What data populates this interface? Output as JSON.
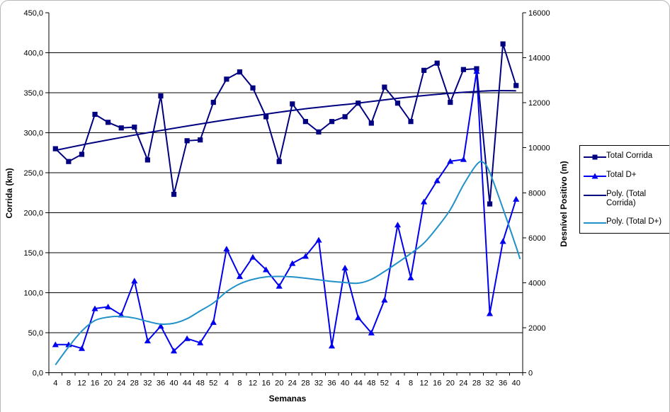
{
  "chart_data": {
    "type": "line",
    "title": "",
    "xlabel": "Semanas",
    "ylabel_left": "Corrida (km)",
    "ylabel_right": "Desnível Positivo (m)",
    "grid": "horizontal",
    "legend_position": "right",
    "x_labels": [
      "4",
      "8",
      "12",
      "16",
      "20",
      "24",
      "28",
      "32",
      "36",
      "40",
      "44",
      "48",
      "52",
      "4",
      "8",
      "12",
      "16",
      "20",
      "24",
      "28",
      "32",
      "36",
      "40",
      "44",
      "48",
      "52",
      "4",
      "8",
      "12",
      "16",
      "20",
      "24",
      "28",
      "32",
      "36",
      "40"
    ],
    "left_axis": {
      "min": 0,
      "max": 450,
      "step": 50,
      "tick_labels": [
        "450,0",
        "400,0",
        "350,0",
        "300,0",
        "250,0",
        "200,0",
        "150,0",
        "100,0",
        "50,0",
        "0,0"
      ]
    },
    "right_axis": {
      "min": 0,
      "max": 16000,
      "step": 2000,
      "tick_labels": [
        "16000",
        "14000",
        "12000",
        "10000",
        "8000",
        "6000",
        "4000",
        "2000",
        "0"
      ]
    },
    "series": [
      {
        "name": "Total Corrida",
        "axis": "left",
        "color": "#000080",
        "marker": "square",
        "values": [
          280,
          264,
          273,
          323,
          313,
          306,
          307,
          266,
          346,
          223,
          290,
          291,
          338,
          367,
          376,
          356,
          320,
          264,
          336,
          314,
          301,
          314,
          320,
          337,
          312,
          357,
          337,
          314,
          378,
          387,
          338,
          379,
          380,
          211,
          411,
          359
        ]
      },
      {
        "name": "Total D+",
        "axis": "right",
        "color": "#0000ee",
        "marker": "triangle",
        "values": [
          1250,
          1250,
          1080,
          2850,
          2930,
          2570,
          4080,
          1420,
          2070,
          970,
          1520,
          1330,
          2240,
          5500,
          4280,
          5140,
          4580,
          3850,
          4860,
          5180,
          5900,
          1190,
          4660,
          2450,
          1770,
          3230,
          6570,
          4220,
          7600,
          8540,
          9400,
          9480,
          13400,
          2630,
          5840,
          7715
        ]
      },
      {
        "name": "Poly. (Total Corrida)",
        "axis": "left",
        "color": "#000080",
        "marker": "none",
        "trend": true,
        "points": [
          [
            1,
            278
          ],
          [
            4,
            288
          ],
          [
            8,
            300
          ],
          [
            12,
            311
          ],
          [
            16,
            321
          ],
          [
            20,
            330
          ],
          [
            24,
            337
          ],
          [
            27,
            343
          ],
          [
            30,
            348
          ],
          [
            32,
            350.5
          ],
          [
            34,
            352.5
          ],
          [
            36,
            352.5
          ]
        ]
      },
      {
        "name": "Poly. (Total D+)",
        "axis": "right",
        "color": "#2191c9",
        "marker": "none",
        "trend": true,
        "points": [
          [
            1,
            350
          ],
          [
            2,
            1150
          ],
          [
            3,
            1850
          ],
          [
            4,
            2320
          ],
          [
            5,
            2470
          ],
          [
            6,
            2500
          ],
          [
            7,
            2430
          ],
          [
            8,
            2280
          ],
          [
            9,
            2160
          ],
          [
            10,
            2200
          ],
          [
            11,
            2400
          ],
          [
            12,
            2750
          ],
          [
            13,
            3100
          ],
          [
            14,
            3600
          ],
          [
            15,
            3950
          ],
          [
            16,
            4150
          ],
          [
            17,
            4260
          ],
          [
            18,
            4280
          ],
          [
            19,
            4260
          ],
          [
            20,
            4200
          ],
          [
            21,
            4130
          ],
          [
            22,
            4060
          ],
          [
            23,
            4010
          ],
          [
            24,
            3980
          ],
          [
            25,
            4150
          ],
          [
            26,
            4500
          ],
          [
            27,
            4890
          ],
          [
            28,
            5300
          ],
          [
            29,
            5760
          ],
          [
            30,
            6450
          ],
          [
            31,
            7250
          ],
          [
            32,
            8350
          ],
          [
            33,
            9250
          ],
          [
            33.5,
            9350
          ],
          [
            34,
            8900
          ],
          [
            35,
            7300
          ],
          [
            36,
            5600
          ],
          [
            36.3,
            5050
          ]
        ]
      }
    ]
  }
}
